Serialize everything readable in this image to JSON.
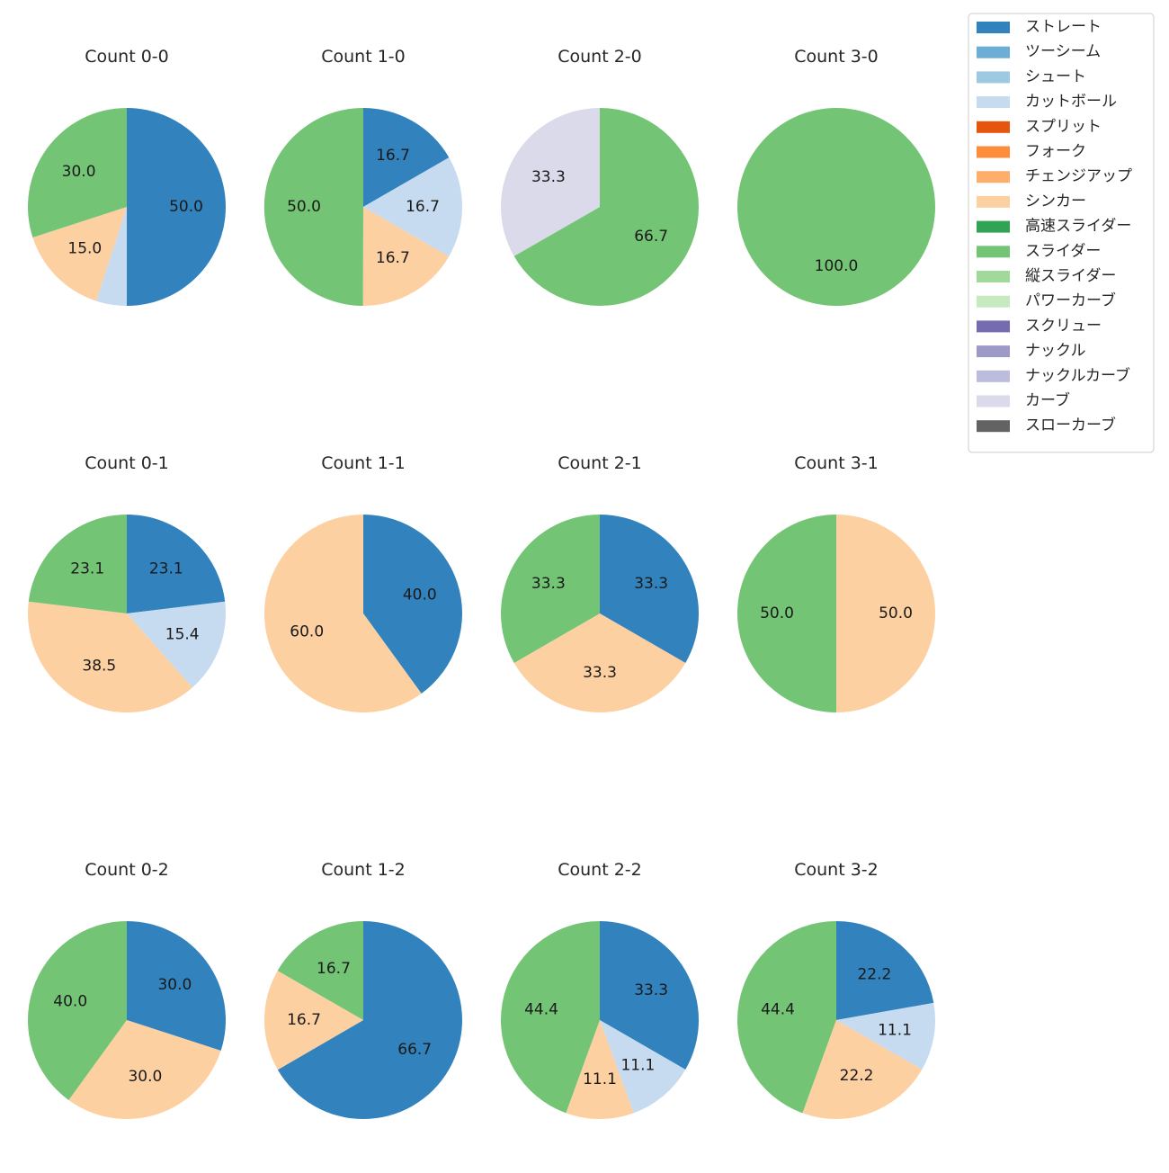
{
  "chart_data": {
    "type": "pie",
    "legend": {
      "position": "top-right",
      "entries": [
        {
          "name": "ストレート",
          "color": "#3182bd"
        },
        {
          "name": "ツーシーム",
          "color": "#6baed6"
        },
        {
          "name": "シュート",
          "color": "#9ecae1"
        },
        {
          "name": "カットボール",
          "color": "#c6dbef"
        },
        {
          "name": "スプリット",
          "color": "#e6550d"
        },
        {
          "name": "フォーク",
          "color": "#fd8d3c"
        },
        {
          "name": "チェンジアップ",
          "color": "#fdae6b"
        },
        {
          "name": "シンカー",
          "color": "#fdd0a2"
        },
        {
          "name": "高速スライダー",
          "color": "#31a354"
        },
        {
          "name": "スライダー",
          "color": "#74c476"
        },
        {
          "name": "縦スライダー",
          "color": "#a1d99b"
        },
        {
          "name": "パワーカーブ",
          "color": "#c7e9c0"
        },
        {
          "name": "スクリュー",
          "color": "#756bb1"
        },
        {
          "name": "ナックル",
          "color": "#9e9ac8"
        },
        {
          "name": "ナックルカーブ",
          "color": "#bcbddc"
        },
        {
          "name": "カーブ",
          "color": "#dadaeb"
        },
        {
          "name": "スローカーブ",
          "color": "#636363"
        }
      ]
    },
    "pies": [
      {
        "title": "Count 0-0",
        "slices": [
          {
            "pitch": "ストレート",
            "value": 50.0,
            "label": "50.0"
          },
          {
            "pitch": "カットボール",
            "value": 5.0,
            "label": ""
          },
          {
            "pitch": "シンカー",
            "value": 15.0,
            "label": "15.0"
          },
          {
            "pitch": "スライダー",
            "value": 30.0,
            "label": "30.0"
          }
        ]
      },
      {
        "title": "Count 1-0",
        "slices": [
          {
            "pitch": "ストレート",
            "value": 16.7,
            "label": "16.7"
          },
          {
            "pitch": "カットボール",
            "value": 16.7,
            "label": "16.7"
          },
          {
            "pitch": "シンカー",
            "value": 16.7,
            "label": "16.7"
          },
          {
            "pitch": "スライダー",
            "value": 50.0,
            "label": "50.0"
          }
        ]
      },
      {
        "title": "Count 2-0",
        "slices": [
          {
            "pitch": "スライダー",
            "value": 66.7,
            "label": "66.7"
          },
          {
            "pitch": "カーブ",
            "value": 33.3,
            "label": "33.3"
          }
        ]
      },
      {
        "title": "Count 3-0",
        "slices": [
          {
            "pitch": "スライダー",
            "value": 100.0,
            "label": "100.0"
          }
        ]
      },
      {
        "title": "Count 0-1",
        "slices": [
          {
            "pitch": "ストレート",
            "value": 23.1,
            "label": "23.1"
          },
          {
            "pitch": "カットボール",
            "value": 15.4,
            "label": "15.4"
          },
          {
            "pitch": "シンカー",
            "value": 38.5,
            "label": "38.5"
          },
          {
            "pitch": "スライダー",
            "value": 23.1,
            "label": "23.1"
          }
        ]
      },
      {
        "title": "Count 1-1",
        "slices": [
          {
            "pitch": "ストレート",
            "value": 40.0,
            "label": "40.0"
          },
          {
            "pitch": "シンカー",
            "value": 60.0,
            "label": "60.0"
          }
        ]
      },
      {
        "title": "Count 2-1",
        "slices": [
          {
            "pitch": "ストレート",
            "value": 33.3,
            "label": "33.3"
          },
          {
            "pitch": "シンカー",
            "value": 33.3,
            "label": "33.3"
          },
          {
            "pitch": "スライダー",
            "value": 33.3,
            "label": "33.3"
          }
        ]
      },
      {
        "title": "Count 3-1",
        "slices": [
          {
            "pitch": "シンカー",
            "value": 50.0,
            "label": "50.0"
          },
          {
            "pitch": "スライダー",
            "value": 50.0,
            "label": "50.0"
          }
        ]
      },
      {
        "title": "Count 0-2",
        "slices": [
          {
            "pitch": "ストレート",
            "value": 30.0,
            "label": "30.0"
          },
          {
            "pitch": "シンカー",
            "value": 30.0,
            "label": "30.0"
          },
          {
            "pitch": "スライダー",
            "value": 40.0,
            "label": "40.0"
          }
        ]
      },
      {
        "title": "Count 1-2",
        "slices": [
          {
            "pitch": "ストレート",
            "value": 66.7,
            "label": "66.7"
          },
          {
            "pitch": "シンカー",
            "value": 16.7,
            "label": "16.7"
          },
          {
            "pitch": "スライダー",
            "value": 16.7,
            "label": "16.7"
          }
        ]
      },
      {
        "title": "Count 2-2",
        "slices": [
          {
            "pitch": "ストレート",
            "value": 33.3,
            "label": "33.3"
          },
          {
            "pitch": "カットボール",
            "value": 11.1,
            "label": "11.1"
          },
          {
            "pitch": "シンカー",
            "value": 11.1,
            "label": "11.1"
          },
          {
            "pitch": "スライダー",
            "value": 44.4,
            "label": "44.4"
          }
        ]
      },
      {
        "title": "Count 3-2",
        "slices": [
          {
            "pitch": "ストレート",
            "value": 22.2,
            "label": "22.2"
          },
          {
            "pitch": "カットボール",
            "value": 11.1,
            "label": "11.1"
          },
          {
            "pitch": "シンカー",
            "value": 22.2,
            "label": "22.2"
          },
          {
            "pitch": "スライダー",
            "value": 44.4,
            "label": "44.4"
          }
        ]
      }
    ]
  }
}
